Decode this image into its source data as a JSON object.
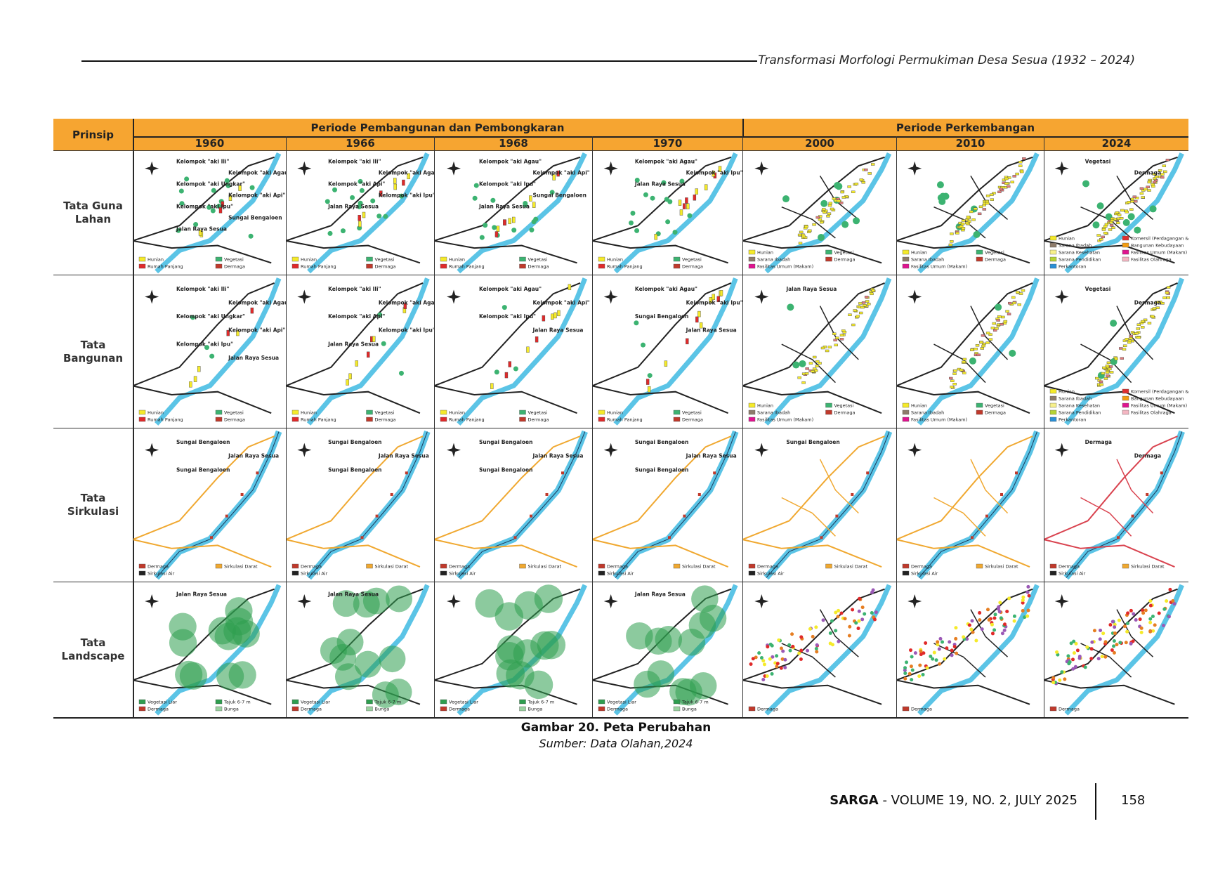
{
  "header": {
    "running_title": "Transformasi Morfologi Permukiman Desa Sesua (1932 – 2024)"
  },
  "figure": {
    "principle_header": "Prinsip",
    "group_headers": [
      "Periode Pembangunan dan Pembongkaran",
      "Periode Perkembangan"
    ],
    "years": [
      "1960",
      "1966",
      "1968",
      "1970",
      "2000",
      "2010",
      "2024"
    ],
    "rows": [
      {
        "label": "Tata Guna Lahan",
        "cells": [
          {
            "labels": [
              "Kelompok \"aki Ili\"",
              "Kelompok \"aki Agau\"",
              "Kelompok \"aki Ungkar\"",
              "Kelompok \"aki Api\"",
              "Kelompok \"aki Ipu\"",
              "Sungai Bengaloen",
              "Jalan Raya Sesua"
            ],
            "legend": [
              {
                "text": "Hunian",
                "color": "#f5ea2a"
              },
              {
                "text": "Rumah Panjang",
                "color": "#e02a2a"
              },
              {
                "text": "Vegetasi",
                "color": "#3cb371"
              },
              {
                "text": "Dermaga",
                "color": "#c0392b"
              }
            ]
          },
          {
            "labels": [
              "Kelompok \"aki Ili\"",
              "Kelompok \"aki Agau\"",
              "Kelompok \"aki Api\"",
              "Kelompok \"aki Ipu\"",
              "Jalan Raya Sesua"
            ],
            "legend": [
              {
                "text": "Hunian",
                "color": "#f5ea2a"
              },
              {
                "text": "Rumah Panjang",
                "color": "#e02a2a"
              },
              {
                "text": "Vegetasi",
                "color": "#3cb371"
              },
              {
                "text": "Dermaga",
                "color": "#c0392b"
              }
            ]
          },
          {
            "labels": [
              "Kelompok \"aki Agau\"",
              "Kelompok \"aki Api\"",
              "Kelompok \"aki Ipu\"",
              "Sungai Bengaloen",
              "Jalan Raya Sesua"
            ],
            "legend": [
              {
                "text": "Hunian",
                "color": "#f5ea2a"
              },
              {
                "text": "Rumah Panjang",
                "color": "#e02a2a"
              },
              {
                "text": "Vegetasi",
                "color": "#3cb371"
              },
              {
                "text": "Dermaga",
                "color": "#c0392b"
              }
            ]
          },
          {
            "labels": [
              "Kelompok \"aki Agau\"",
              "Kelompok \"aki Ipu\"",
              "Jalan Raya Sesua"
            ],
            "legend": [
              {
                "text": "Hunian",
                "color": "#f5ea2a"
              },
              {
                "text": "Rumah Panjang",
                "color": "#e02a2a"
              },
              {
                "text": "Vegetasi",
                "color": "#3cb371"
              },
              {
                "text": "Dermaga",
                "color": "#c0392b"
              }
            ]
          },
          {
            "labels": [],
            "legend": [
              {
                "text": "Hunian",
                "color": "#f5ea2a"
              },
              {
                "text": "Sarana Ibadah",
                "color": "#8d7b6a"
              },
              {
                "text": "Fasilitas Umum (Makam)",
                "color": "#e0138f"
              },
              {
                "text": "Vegetasi",
                "color": "#3cb371"
              },
              {
                "text": "Dermaga",
                "color": "#c0392b"
              }
            ]
          },
          {
            "labels": [],
            "legend": [
              {
                "text": "Hunian",
                "color": "#f5ea2a"
              },
              {
                "text": "Sarana Ibadah",
                "color": "#8d7b6a"
              },
              {
                "text": "Fasilitas Umum (Makam)",
                "color": "#e0138f"
              },
              {
                "text": "Vegetasi",
                "color": "#3cb371"
              },
              {
                "text": "Dermaga",
                "color": "#c0392b"
              }
            ]
          },
          {
            "labels": [
              "Vegetasi",
              "Dermaga"
            ],
            "legend": [
              {
                "text": "Hunian",
                "color": "#f5ea2a"
              },
              {
                "text": "Sarana Ibadah",
                "color": "#8d7b6a"
              },
              {
                "text": "Sarana Kesehatan",
                "color": "#f7f08b"
              },
              {
                "text": "Sarana Pendidikan",
                "color": "#b5d334"
              },
              {
                "text": "Perkantoran",
                "color": "#2a8fd6"
              },
              {
                "text": "Komersil (Perdagangan & Jasa)",
                "color": "#e03030"
              },
              {
                "text": "Bangunan Kebudayaan",
                "color": "#f39c12"
              },
              {
                "text": "Fasilitas Umum (Makam)",
                "color": "#e0138f"
              },
              {
                "text": "Fasilitas Olahraga",
                "color": "#f4b6c2"
              }
            ]
          }
        ]
      },
      {
        "label": "Tata Bangunan",
        "cells": [
          {
            "labels": [
              "Kelompok \"aki Ili\"",
              "Kelompok \"aki Agau\"",
              "Kelompok \"aki Ungkar\"",
              "Kelompok \"aki Api\"",
              "Kelompok \"aki Ipu\"",
              "Jalan Raya Sesua"
            ],
            "legend": [
              {
                "text": "Hunian",
                "color": "#f5ea2a"
              },
              {
                "text": "Rumah Panjang",
                "color": "#e02a2a"
              },
              {
                "text": "Vegetasi",
                "color": "#3cb371"
              },
              {
                "text": "Dermaga",
                "color": "#c0392b"
              }
            ]
          },
          {
            "labels": [
              "Kelompok \"aki Ili\"",
              "Kelompok \"aki Agau\"",
              "Kelompok \"aki Api\"",
              "Kelompok \"aki Ipu\"",
              "Jalan Raya Sesua"
            ],
            "legend": [
              {
                "text": "Hunian",
                "color": "#f5ea2a"
              },
              {
                "text": "Rumah Panjang",
                "color": "#e02a2a"
              },
              {
                "text": "Vegetasi",
                "color": "#3cb371"
              },
              {
                "text": "Dermaga",
                "color": "#c0392b"
              }
            ]
          },
          {
            "labels": [
              "Kelompok \"aki Agau\"",
              "Kelompok \"aki Api\"",
              "Kelompok \"aki Ipu\"",
              "Jalan Raya Sesua"
            ],
            "legend": [
              {
                "text": "Hunian",
                "color": "#f5ea2a"
              },
              {
                "text": "Rumah Panjang",
                "color": "#e02a2a"
              },
              {
                "text": "Vegetasi",
                "color": "#3cb371"
              },
              {
                "text": "Dermaga",
                "color": "#c0392b"
              }
            ]
          },
          {
            "labels": [
              "Kelompok \"aki Agau\"",
              "Kelompok \"aki Ipu\"",
              "Sungai Bengaloen",
              "Jalan Raya Sesua"
            ],
            "legend": [
              {
                "text": "Hunian",
                "color": "#f5ea2a"
              },
              {
                "text": "Rumah Panjang",
                "color": "#e02a2a"
              },
              {
                "text": "Vegetasi",
                "color": "#3cb371"
              },
              {
                "text": "Dermaga",
                "color": "#c0392b"
              }
            ]
          },
          {
            "labels": [
              "Jalan Raya Sesua"
            ],
            "legend": [
              {
                "text": "Hunian",
                "color": "#f5ea2a"
              },
              {
                "text": "Sarana Ibadah",
                "color": "#8d7b6a"
              },
              {
                "text": "Fasilitas Umum (Makam)",
                "color": "#e0138f"
              },
              {
                "text": "Vegetasi",
                "color": "#3cb371"
              },
              {
                "text": "Dermaga",
                "color": "#c0392b"
              }
            ]
          },
          {
            "labels": [],
            "legend": [
              {
                "text": "Hunian",
                "color": "#f5ea2a"
              },
              {
                "text": "Sarana Ibadah",
                "color": "#8d7b6a"
              },
              {
                "text": "Fasilitas Umum (Makam)",
                "color": "#e0138f"
              },
              {
                "text": "Vegetasi",
                "color": "#3cb371"
              },
              {
                "text": "Dermaga",
                "color": "#c0392b"
              }
            ]
          },
          {
            "labels": [
              "Vegetasi",
              "Dermaga"
            ],
            "legend": [
              {
                "text": "Hunian",
                "color": "#f5ea2a"
              },
              {
                "text": "Sarana Ibadah",
                "color": "#8d7b6a"
              },
              {
                "text": "Sarana Kesehatan",
                "color": "#f7f08b"
              },
              {
                "text": "Sarana Pendidikan",
                "color": "#b5d334"
              },
              {
                "text": "Perkantoran",
                "color": "#2a8fd6"
              },
              {
                "text": "Komersil (Perdagangan & Jasa)",
                "color": "#e03030"
              },
              {
                "text": "Bangunan Kebudayaan",
                "color": "#f39c12"
              },
              {
                "text": "Fasilitas Umum (Makam)",
                "color": "#e0138f"
              },
              {
                "text": "Fasilitas Olahraga",
                "color": "#f4b6c2"
              }
            ]
          }
        ]
      },
      {
        "label": "Tata Sirkulasi",
        "cells": [
          {
            "labels": [
              "Sungai Bengaloen",
              "Jalan Raya Sesua",
              "Sungai Bengaloen"
            ],
            "legend": [
              {
                "text": "Dermaga",
                "color": "#c0392b"
              },
              {
                "text": "Sirkulasi Air",
                "color": "#222222"
              },
              {
                "text": "Sirkulasi Darat",
                "color": "#f0a830"
              }
            ]
          },
          {
            "labels": [
              "Sungai Bengaloen",
              "Jalan Raya Sesua",
              "Sungai Bengaloen"
            ],
            "legend": [
              {
                "text": "Dermaga",
                "color": "#c0392b"
              },
              {
                "text": "Sirkulasi Air",
                "color": "#222222"
              },
              {
                "text": "Sirkulasi Darat",
                "color": "#f0a830"
              }
            ]
          },
          {
            "labels": [
              "Sungai Bengaloen",
              "Jalan Raya Sesua",
              "Sungai Bengaloen"
            ],
            "legend": [
              {
                "text": "Dermaga",
                "color": "#c0392b"
              },
              {
                "text": "Sirkulasi Air",
                "color": "#222222"
              },
              {
                "text": "Sirkulasi Darat",
                "color": "#f0a830"
              }
            ]
          },
          {
            "labels": [
              "Sungai Bengaloen",
              "Jalan Raya Sesua",
              "Sungai Bengaloen"
            ],
            "legend": [
              {
                "text": "Dermaga",
                "color": "#c0392b"
              },
              {
                "text": "Sirkulasi Air",
                "color": "#222222"
              },
              {
                "text": "Sirkulasi Darat",
                "color": "#f0a830"
              }
            ]
          },
          {
            "labels": [
              "Sungai Bengaloen"
            ],
            "legend": [
              {
                "text": "Dermaga",
                "color": "#c0392b"
              },
              {
                "text": "Sirkulasi Air",
                "color": "#222222"
              },
              {
                "text": "Sirkulasi Darat",
                "color": "#f0a830"
              }
            ]
          },
          {
            "labels": [],
            "legend": [
              {
                "text": "Dermaga",
                "color": "#c0392b"
              },
              {
                "text": "Sirkulasi Air",
                "color": "#222222"
              },
              {
                "text": "Sirkulasi Darat",
                "color": "#f0a830"
              }
            ]
          },
          {
            "labels": [
              "Dermaga",
              "Dermaga"
            ],
            "legend": [
              {
                "text": "Dermaga",
                "color": "#c0392b"
              },
              {
                "text": "Sirkulasi Air",
                "color": "#222222"
              },
              {
                "text": "Sirkulasi Darat",
                "color": "#f0a830"
              }
            ]
          }
        ]
      },
      {
        "label": "Tata Landscape",
        "cells": [
          {
            "labels": [
              "Jalan Raya Sesua"
            ],
            "legend": [
              {
                "text": "Vegetasi Liar",
                "color": "#2e9e4f"
              },
              {
                "text": "Dermaga",
                "color": "#c0392b"
              },
              {
                "text": "Tajuk 6-7 m",
                "color": "#2e9e4f"
              },
              {
                "text": "Bunga",
                "color": "#9ad3a0"
              }
            ]
          },
          {
            "labels": [
              "Jalan Raya Sesua"
            ],
            "legend": [
              {
                "text": "Vegetasi Liar",
                "color": "#2e9e4f"
              },
              {
                "text": "Dermaga",
                "color": "#c0392b"
              },
              {
                "text": "Tajuk 6-7 m",
                "color": "#2e9e4f"
              },
              {
                "text": "Bunga",
                "color": "#9ad3a0"
              }
            ]
          },
          {
            "labels": [],
            "legend": [
              {
                "text": "Vegetasi Liar",
                "color": "#2e9e4f"
              },
              {
                "text": "Dermaga",
                "color": "#c0392b"
              },
              {
                "text": "Tajuk 6-7 m",
                "color": "#2e9e4f"
              },
              {
                "text": "Bunga",
                "color": "#9ad3a0"
              }
            ]
          },
          {
            "labels": [
              "Jalan Raya Sesua"
            ],
            "legend": [
              {
                "text": "Vegetasi Liar",
                "color": "#2e9e4f"
              },
              {
                "text": "Dermaga",
                "color": "#c0392b"
              },
              {
                "text": "Tajuk 6-7 m",
                "color": "#2e9e4f"
              },
              {
                "text": "Bunga",
                "color": "#9ad3a0"
              }
            ]
          },
          {
            "labels": [],
            "legend": [
              {
                "text": "Dermaga",
                "color": "#c0392b"
              }
            ]
          },
          {
            "labels": [],
            "legend": [
              {
                "text": "Dermaga",
                "color": "#c0392b"
              }
            ]
          },
          {
            "labels": [],
            "legend": [
              {
                "text": "Dermaga",
                "color": "#c0392b"
              }
            ]
          }
        ]
      }
    ]
  },
  "caption": {
    "title": "Gambar 20. Peta Perubahan",
    "source": "Sumber: Data Olahan,2024"
  },
  "footer": {
    "journal": "SARGA",
    "issue": " - VOLUME 19, NO. 2, JULY 2025",
    "page": "158"
  }
}
